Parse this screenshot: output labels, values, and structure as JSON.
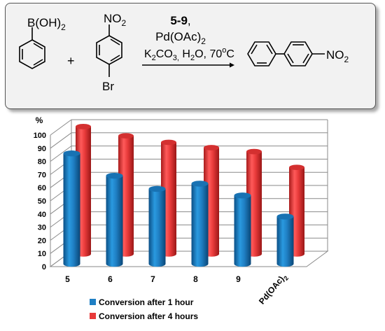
{
  "scheme": {
    "reactant1_group": "B(OH)",
    "reactant1_sub": "2",
    "plus": "+",
    "reactant2_group": "NO",
    "reactant2_sub": "2",
    "reactant2_sub_group": "Br",
    "cond_line1": "5-9",
    "cond_line1_tail": ",",
    "cond_pd": "Pd(OAc)",
    "cond_pd_sub": "2",
    "cond_k": "K",
    "cond_k_sub": "2",
    "cond_co": "CO",
    "cond_co_sub": "3,",
    "cond_h": " H",
    "cond_h_sub": "2",
    "cond_tail": "O, 70",
    "cond_deg": "o",
    "cond_c": "C",
    "product_group": "NO",
    "product_sub": "2"
  },
  "chart_data": {
    "type": "bar",
    "yaxis_label": "%",
    "ylim": [
      0,
      100
    ],
    "yticks": [
      0,
      10,
      20,
      30,
      40,
      50,
      60,
      70,
      80,
      90,
      100
    ],
    "categories": [
      "5",
      "6",
      "7",
      "8",
      "9",
      "Pd(OAc)2"
    ],
    "category_display": {
      "last_main": "Pd(OAc)",
      "last_sub": "2"
    },
    "series": [
      {
        "name": "Conversion after 1 hour",
        "color": "#1f7fc4",
        "values": [
          85,
          68,
          58,
          62,
          53,
          37
        ]
      },
      {
        "name": "Conversion after 4 hours",
        "color": "#e83a3a",
        "values": [
          100,
          93,
          88,
          84,
          81,
          69
        ]
      }
    ],
    "legend_position": "bottom-left",
    "style": "3d-cylinder"
  }
}
